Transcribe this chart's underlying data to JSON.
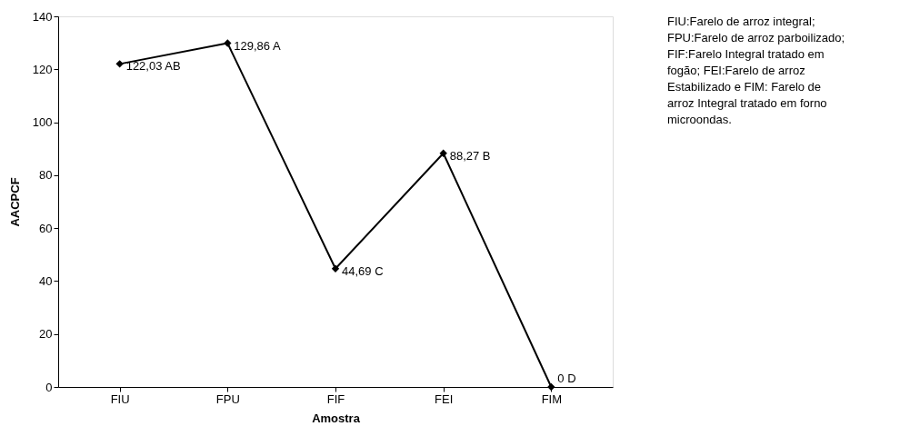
{
  "chart_data": {
    "type": "line",
    "xlabel": "Amostra",
    "ylabel": "AACPCF",
    "categories": [
      "FIU",
      "FPU",
      "FIF",
      "FEI",
      "FIM"
    ],
    "series": [
      {
        "color": "#000000",
        "values": [
          122.03,
          129.86,
          44.69,
          88.27,
          0
        ],
        "value_labels": [
          "122,03 AB",
          "129,86 A",
          "44,69 C",
          "88,27 B",
          "0 D"
        ]
      }
    ],
    "ylim": [
      0,
      140
    ],
    "yticks": [
      0,
      20,
      40,
      60,
      80,
      100,
      120,
      140
    ],
    "grid": false,
    "marker": "diamond",
    "line_style": "solid",
    "annotations": [
      "FIU:Farelo de arroz integral; FPU:Farelo de arroz parboilizado; FIF:Farelo Integral tratado em fogão; FEI:Farelo de arroz Estabilizado e FIM: Farelo de arroz Integral tratado em forno microondas."
    ]
  }
}
